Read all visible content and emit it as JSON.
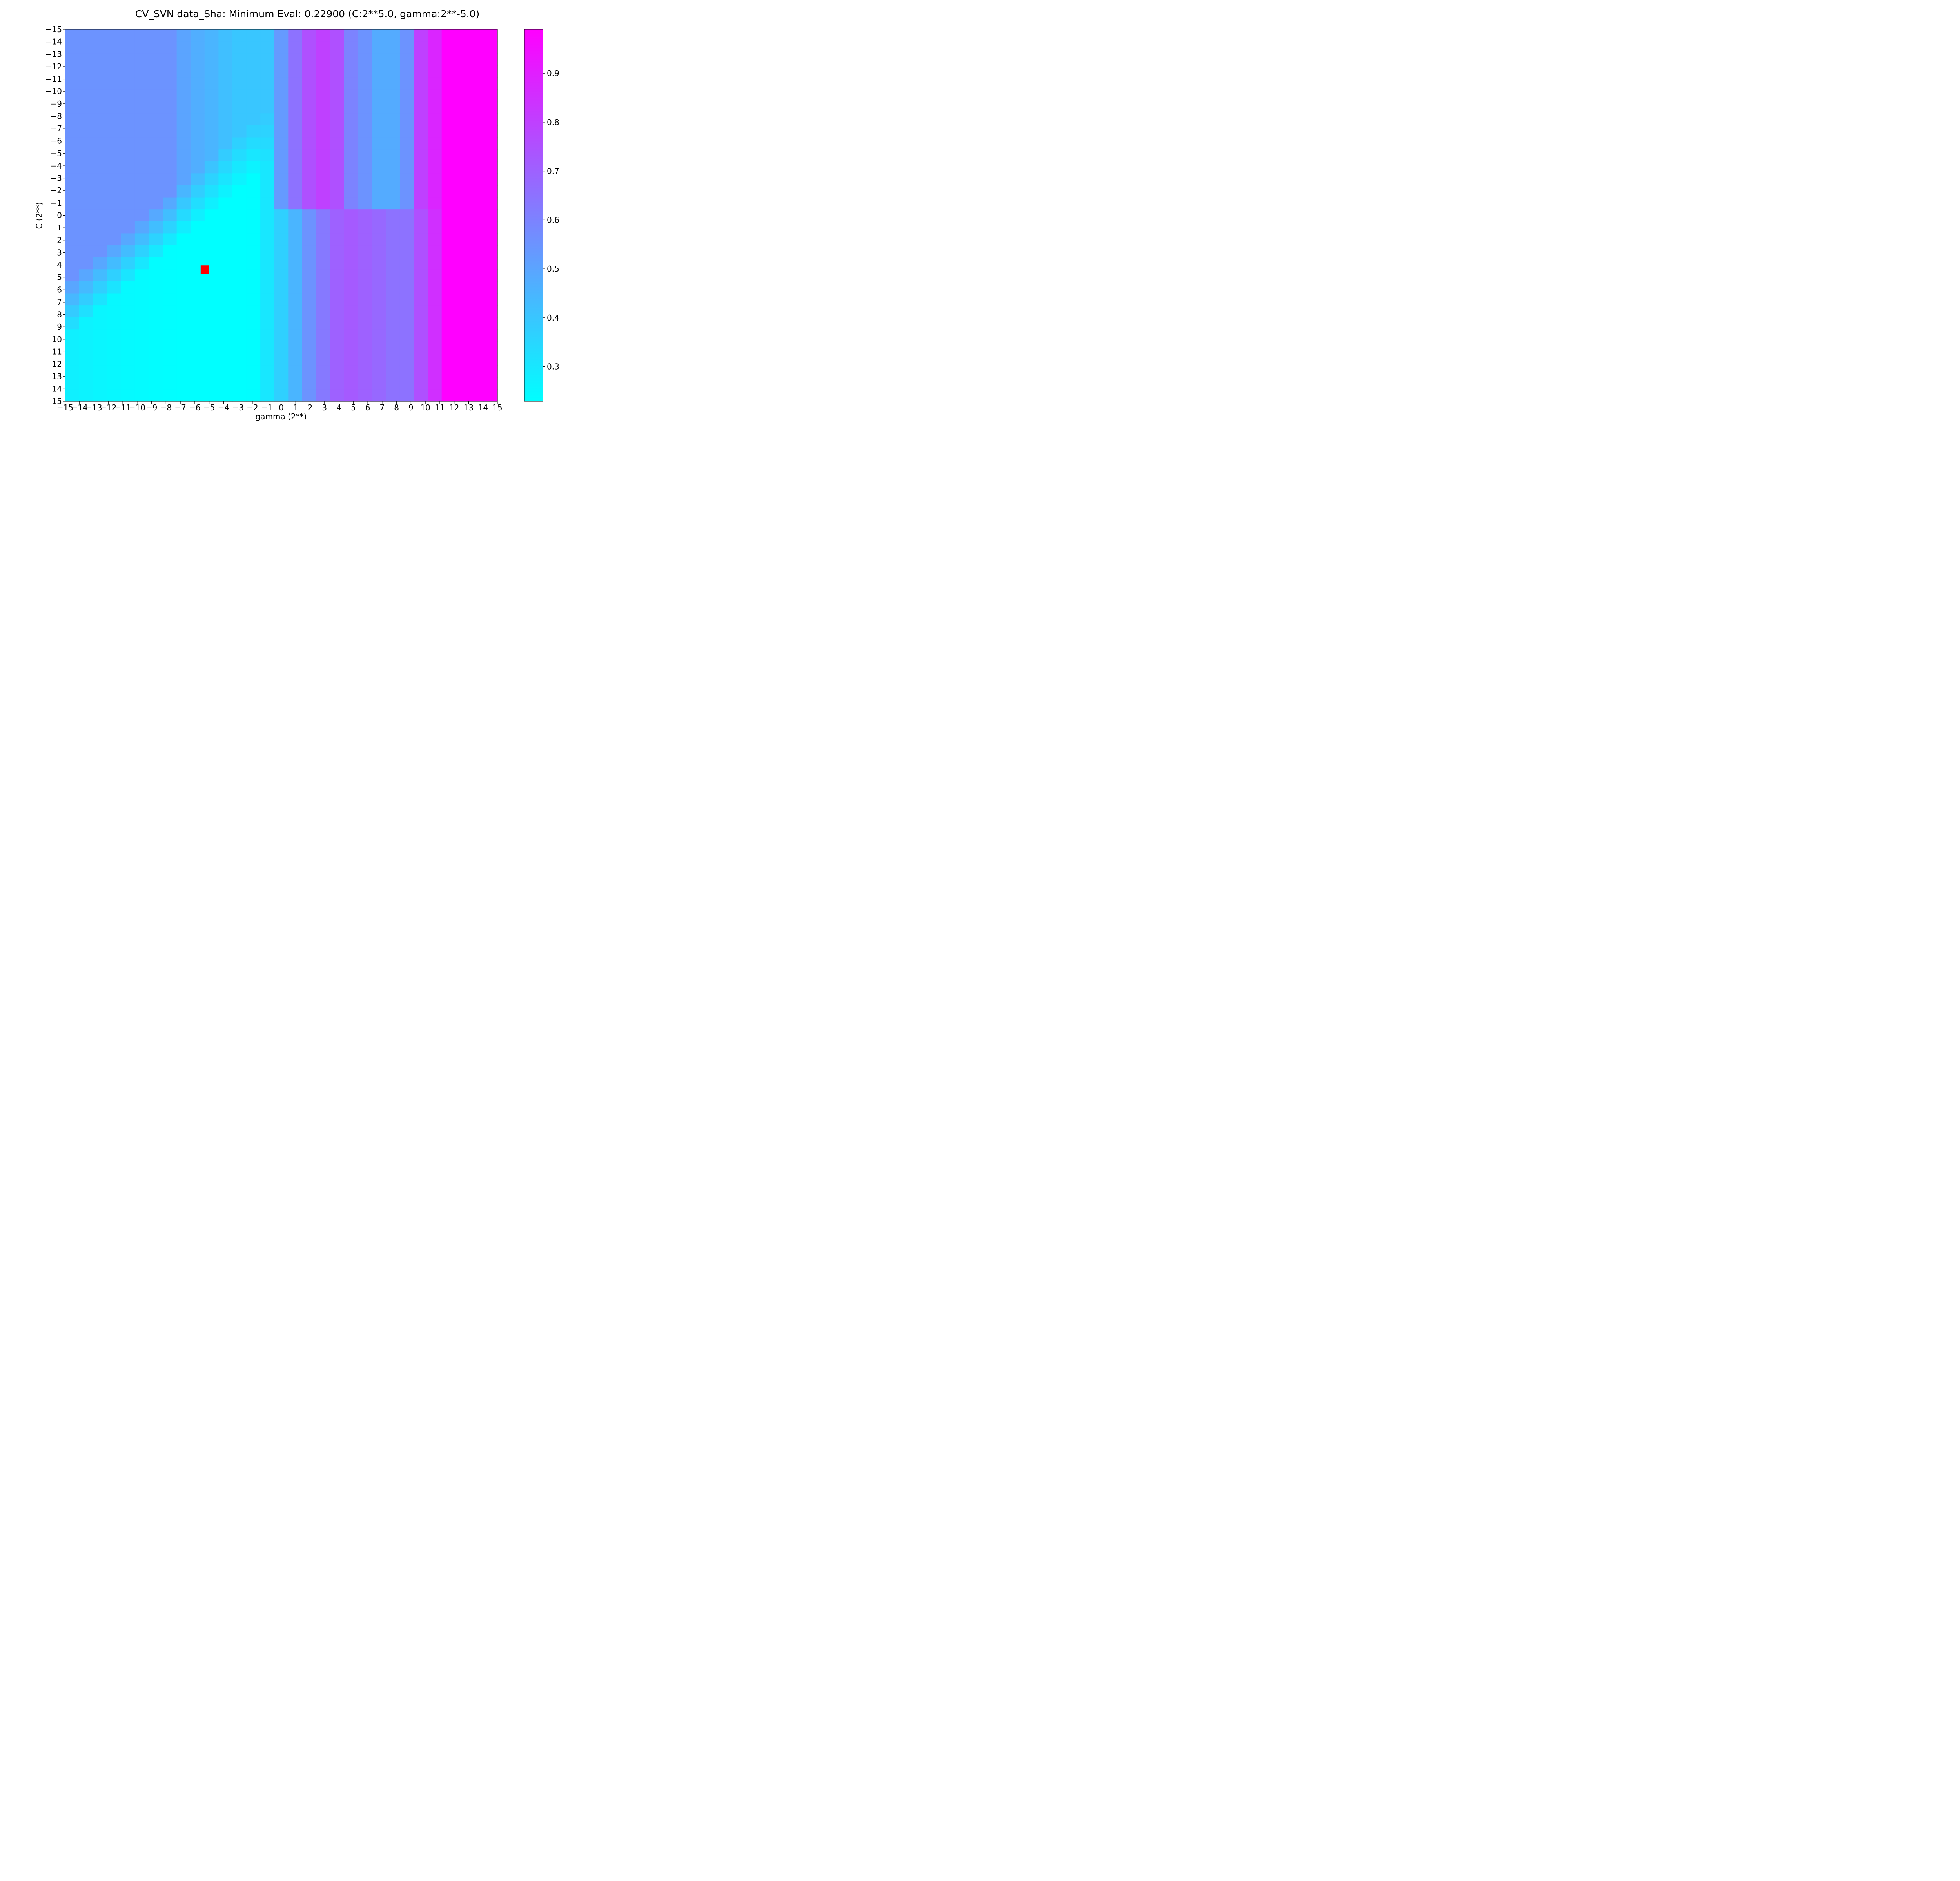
{
  "chart_data": {
    "type": "heatmap",
    "title": "CV_SVN data_Sha: Minimum Eval: 0.22900 (C:2**5.0, gamma:2**-5.0)",
    "xlabel": "gamma (2**)",
    "ylabel": "C (2**)",
    "x_ticks": [
      "−15",
      "−14",
      "−13",
      "−12",
      "−11",
      "−10",
      "−9",
      "−8",
      "−7",
      "−6",
      "−5",
      "−4",
      "−3",
      "−2",
      "−1",
      "0",
      "1",
      "2",
      "3",
      "4",
      "5",
      "6",
      "7",
      "8",
      "9",
      "10",
      "11",
      "12",
      "13",
      "14",
      "15"
    ],
    "y_ticks": [
      "−15",
      "−14",
      "−13",
      "−12",
      "−11",
      "−10",
      "−9",
      "−8",
      "−7",
      "−6",
      "−5",
      "−4",
      "−3",
      "−2",
      "−1",
      "0",
      "1",
      "2",
      "3",
      "4",
      "5",
      "6",
      "7",
      "8",
      "9",
      "10",
      "11",
      "12",
      "13",
      "14",
      "15"
    ],
    "xlim": [
      -15,
      15
    ],
    "ylim": [
      -15,
      15
    ],
    "grid": false,
    "colormap": "cool",
    "colormap_colors": [
      "#00ffff",
      "#ff00ff"
    ],
    "value_range": [
      0.229,
      0.99
    ],
    "colorbar_ticks": [
      "0.3",
      "0.4",
      "0.5",
      "0.6",
      "0.7",
      "0.8",
      "0.9"
    ],
    "colorbar_tick_values": [
      0.3,
      0.4,
      0.5,
      0.6,
      0.7,
      0.8,
      0.9
    ],
    "minimum": {
      "C": 5,
      "gamma": -5,
      "value": 0.229,
      "marker_color": "#ff0000"
    },
    "gamma_values": [
      -15,
      -14,
      -13,
      -12,
      -11,
      -10,
      -9,
      -8,
      -7,
      -6,
      -5,
      -4,
      -3,
      -2,
      -1,
      0,
      1,
      2,
      3,
      4,
      5,
      6,
      7,
      8,
      9,
      10,
      11,
      12,
      13,
      14,
      15
    ],
    "C_values": [
      -15,
      -14,
      -13,
      -12,
      -11,
      -10,
      -9,
      -8,
      -7,
      -6,
      -5,
      -4,
      -3,
      -2,
      -1,
      0,
      1,
      2,
      3,
      4,
      5,
      6,
      7,
      8,
      9,
      10,
      11,
      12,
      13,
      14,
      15
    ],
    "high_C_row_profile": [
      0.275,
      0.265,
      0.255,
      0.25,
      0.245,
      0.24,
      0.235,
      0.232,
      0.23,
      0.23,
      0.229,
      0.23,
      0.23,
      0.232,
      0.3,
      0.37,
      0.45,
      0.55,
      0.63,
      0.7,
      0.72,
      0.7,
      0.68,
      0.65,
      0.65,
      0.75,
      0.85,
      0.99,
      0.99,
      0.99,
      0.99
    ],
    "low_C_row_profile": [
      0.55,
      0.55,
      0.55,
      0.55,
      0.55,
      0.55,
      0.55,
      0.55,
      0.5,
      0.47,
      0.45,
      0.42,
      0.4,
      0.4,
      0.4,
      0.53,
      0.65,
      0.75,
      0.8,
      0.75,
      0.6,
      0.55,
      0.48,
      0.48,
      0.55,
      0.8,
      0.88,
      0.99,
      0.99,
      0.99,
      0.99
    ]
  }
}
